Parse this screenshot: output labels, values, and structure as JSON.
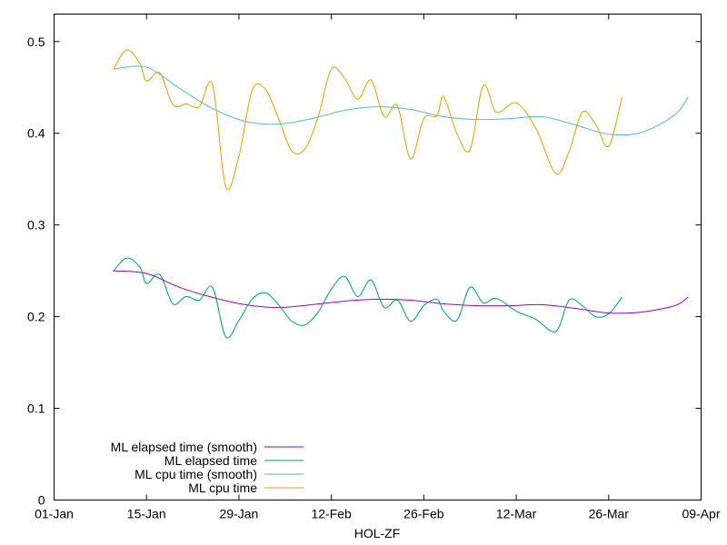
{
  "chart_data": {
    "type": "line",
    "xlabel": "HOL-ZF",
    "ylabel": "",
    "title": "",
    "x_ticks": [
      "01-Jan",
      "15-Jan",
      "29-Jan",
      "12-Feb",
      "26-Feb",
      "12-Mar",
      "26-Mar",
      "09-Apr"
    ],
    "y_ticks": [
      "0",
      "0.1",
      "0.2",
      "0.3",
      "0.4",
      "0.5"
    ],
    "xlim": [
      "01-Jan",
      "09-Apr"
    ],
    "ylim": [
      0,
      0.53
    ],
    "grid": false,
    "legend_position": "bottom-left",
    "series": [
      {
        "name": "ML elapsed time (smooth)",
        "color": "#9400d3",
        "points": [
          [
            "10-Jan",
            0.25
          ],
          [
            "15-Jan",
            0.247
          ],
          [
            "20-Jan",
            0.232
          ],
          [
            "25-Jan",
            0.221
          ],
          [
            "30-Jan",
            0.213
          ],
          [
            "04-Feb",
            0.21
          ],
          [
            "09-Feb",
            0.213
          ],
          [
            "14-Feb",
            0.217
          ],
          [
            "19-Feb",
            0.219
          ],
          [
            "24-Feb",
            0.218
          ],
          [
            "01-Mar",
            0.214
          ],
          [
            "06-Mar",
            0.212
          ],
          [
            "11-Mar",
            0.212
          ],
          [
            "16-Mar",
            0.213
          ],
          [
            "21-Mar",
            0.209
          ],
          [
            "26-Mar",
            0.204
          ],
          [
            "31-Mar",
            0.205
          ],
          [
            "05-Apr",
            0.212
          ],
          [
            "07-Apr",
            0.221
          ]
        ]
      },
      {
        "name": "ML elapsed time",
        "color": "#009e73",
        "points": [
          [
            "10-Jan",
            0.25
          ],
          [
            "12-Jan",
            0.264
          ],
          [
            "14-Jan",
            0.254
          ],
          [
            "15-Jan",
            0.236
          ],
          [
            "17-Jan",
            0.246
          ],
          [
            "19-Jan",
            0.214
          ],
          [
            "21-Jan",
            0.222
          ],
          [
            "23-Jan",
            0.218
          ],
          [
            "25-Jan",
            0.232
          ],
          [
            "27-Jan",
            0.178
          ],
          [
            "29-Jan",
            0.196
          ],
          [
            "31-Jan",
            0.219
          ],
          [
            "02-Feb",
            0.226
          ],
          [
            "04-Feb",
            0.213
          ],
          [
            "06-Feb",
            0.195
          ],
          [
            "08-Feb",
            0.191
          ],
          [
            "10-Feb",
            0.205
          ],
          [
            "12-Feb",
            0.23
          ],
          [
            "14-Feb",
            0.244
          ],
          [
            "16-Feb",
            0.222
          ],
          [
            "18-Feb",
            0.24
          ],
          [
            "20-Feb",
            0.21
          ],
          [
            "22-Feb",
            0.218
          ],
          [
            "24-Feb",
            0.195
          ],
          [
            "26-Feb",
            0.212
          ],
          [
            "28-Feb",
            0.219
          ],
          [
            "01-Mar",
            0.206
          ],
          [
            "03-Mar",
            0.196
          ],
          [
            "05-Mar",
            0.232
          ],
          [
            "07-Mar",
            0.215
          ],
          [
            "09-Mar",
            0.22
          ],
          [
            "12-Mar",
            0.206
          ],
          [
            "15-Mar",
            0.197
          ],
          [
            "18-Mar",
            0.184
          ],
          [
            "20-Mar",
            0.218
          ],
          [
            "22-Mar",
            0.212
          ],
          [
            "24-Mar",
            0.2
          ],
          [
            "26-Mar",
            0.203
          ],
          [
            "28-Mar",
            0.221
          ]
        ]
      },
      {
        "name": "ML cpu time (smooth)",
        "color": "#56b4e9",
        "points": [
          [
            "10-Jan",
            0.47
          ],
          [
            "15-Jan",
            0.472
          ],
          [
            "20-Jan",
            0.449
          ],
          [
            "25-Jan",
            0.427
          ],
          [
            "30-Jan",
            0.413
          ],
          [
            "04-Feb",
            0.41
          ],
          [
            "09-Feb",
            0.416
          ],
          [
            "14-Feb",
            0.425
          ],
          [
            "19-Feb",
            0.429
          ],
          [
            "24-Feb",
            0.426
          ],
          [
            "01-Mar",
            0.418
          ],
          [
            "06-Mar",
            0.415
          ],
          [
            "11-Mar",
            0.416
          ],
          [
            "16-Mar",
            0.418
          ],
          [
            "21-Mar",
            0.409
          ],
          [
            "26-Mar",
            0.399
          ],
          [
            "31-Mar",
            0.401
          ],
          [
            "05-Apr",
            0.42
          ],
          [
            "07-Apr",
            0.439
          ]
        ]
      },
      {
        "name": "ML cpu time",
        "color": "#e69f00",
        "points": [
          [
            "10-Jan",
            0.47
          ],
          [
            "12-Jan",
            0.491
          ],
          [
            "14-Jan",
            0.476
          ],
          [
            "15-Jan",
            0.457
          ],
          [
            "17-Jan",
            0.466
          ],
          [
            "19-Jan",
            0.431
          ],
          [
            "21-Jan",
            0.432
          ],
          [
            "23-Jan",
            0.429
          ],
          [
            "25-Jan",
            0.453
          ],
          [
            "27-Jan",
            0.342
          ],
          [
            "29-Jan",
            0.375
          ],
          [
            "31-Jan",
            0.447
          ],
          [
            "02-Feb",
            0.448
          ],
          [
            "04-Feb",
            0.416
          ],
          [
            "06-Feb",
            0.381
          ],
          [
            "08-Feb",
            0.383
          ],
          [
            "10-Feb",
            0.418
          ],
          [
            "12-Feb",
            0.47
          ],
          [
            "14-Feb",
            0.46
          ],
          [
            "16-Feb",
            0.437
          ],
          [
            "18-Feb",
            0.458
          ],
          [
            "20-Feb",
            0.418
          ],
          [
            "22-Feb",
            0.43
          ],
          [
            "24-Feb",
            0.372
          ],
          [
            "26-Feb",
            0.416
          ],
          [
            "28-Feb",
            0.419
          ],
          [
            "01-Mar",
            0.44
          ],
          [
            "03-Mar",
            0.4
          ],
          [
            "05-Mar",
            0.382
          ],
          [
            "07-Mar",
            0.452
          ],
          [
            "09-Mar",
            0.423
          ],
          [
            "12-Mar",
            0.433
          ],
          [
            "15-Mar",
            0.405
          ],
          [
            "18-Mar",
            0.356
          ],
          [
            "20-Mar",
            0.38
          ],
          [
            "22-Mar",
            0.423
          ],
          [
            "24-Mar",
            0.41
          ],
          [
            "26-Mar",
            0.386
          ],
          [
            "28-Mar",
            0.439
          ]
        ]
      }
    ]
  }
}
